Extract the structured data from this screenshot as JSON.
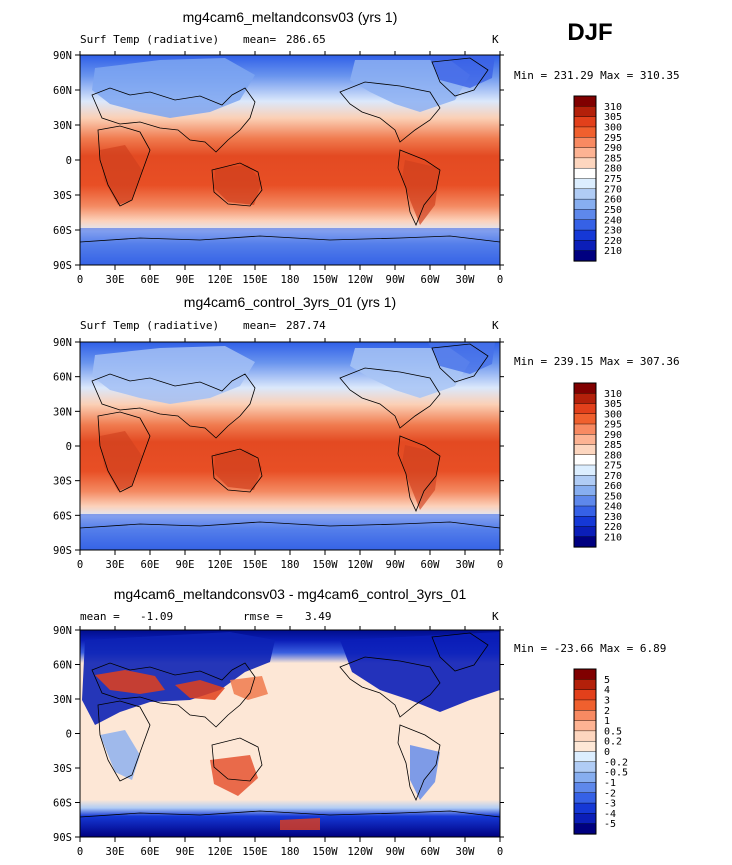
{
  "season": "DJF",
  "chart_data": [
    {
      "type": "heatmap",
      "title": "mg4cam6_meltandconsv03 (yrs 1)",
      "left_label": "Surf Temp (radiative)",
      "stat1_label": "mean=",
      "stat1_value": "286.65",
      "units": "K",
      "minmax_label": "Min = 231.29 Max = 310.35",
      "zlim": [
        231.29,
        310.35
      ],
      "x_ticks": [
        "0",
        "30E",
        "60E",
        "90E",
        "120E",
        "150E",
        "180",
        "150W",
        "120W",
        "90W",
        "60W",
        "30W",
        "0"
      ],
      "y_ticks": [
        "90N",
        "60N",
        "30N",
        "0",
        "30S",
        "60S",
        "90S"
      ],
      "colorbar": {
        "labels": [
          "310",
          "305",
          "300",
          "295",
          "290",
          "285",
          "280",
          "275",
          "270",
          "260",
          "250",
          "240",
          "230",
          "220",
          "210"
        ],
        "colors": [
          "#800000",
          "#b3200a",
          "#e2401b",
          "#f0602e",
          "#f88a62",
          "#fdb393",
          "#fdd6bf",
          "#ffffff",
          "#dceeff",
          "#b0ccf5",
          "#87aef0",
          "#5e88eb",
          "#3661e6",
          "#1538d6",
          "#0b1eb8",
          "#000080"
        ]
      }
    },
    {
      "type": "heatmap",
      "title": "mg4cam6_control_3yrs_01 (yrs 1)",
      "left_label": "Surf Temp (radiative)",
      "stat1_label": "mean=",
      "stat1_value": "287.74",
      "units": "K",
      "minmax_label": "Min = 239.15 Max = 307.36",
      "zlim": [
        239.15,
        307.36
      ],
      "x_ticks": [
        "0",
        "30E",
        "60E",
        "90E",
        "120E",
        "150E",
        "180",
        "150W",
        "120W",
        "90W",
        "60W",
        "30W",
        "0"
      ],
      "y_ticks": [
        "90N",
        "60N",
        "30N",
        "0",
        "30S",
        "60S",
        "90S"
      ],
      "colorbar": {
        "labels": [
          "310",
          "305",
          "300",
          "295",
          "290",
          "285",
          "280",
          "275",
          "270",
          "260",
          "250",
          "240",
          "230",
          "220",
          "210"
        ],
        "colors": [
          "#800000",
          "#b3200a",
          "#e2401b",
          "#f0602e",
          "#f88a62",
          "#fdb393",
          "#fdd6bf",
          "#ffffff",
          "#dceeff",
          "#b0ccf5",
          "#87aef0",
          "#5e88eb",
          "#3661e6",
          "#1538d6",
          "#0b1eb8",
          "#000080"
        ]
      }
    },
    {
      "type": "heatmap",
      "title": "mg4cam6_meltandconsv03 - mg4cam6_control_3yrs_01",
      "stat1_label": "mean =",
      "stat1_value": "-1.09",
      "stat2_label": "rmse =",
      "stat2_value": "3.49",
      "units": "K",
      "minmax_label": "Min = -23.66 Max =    6.89",
      "zlim": [
        -23.66,
        6.89
      ],
      "x_ticks": [
        "0",
        "30E",
        "60E",
        "90E",
        "120E",
        "150E",
        "180",
        "150W",
        "120W",
        "90W",
        "60W",
        "30W",
        "0"
      ],
      "y_ticks": [
        "90N",
        "60N",
        "30N",
        "0",
        "30S",
        "60S",
        "90S"
      ],
      "colorbar": {
        "labels": [
          "5",
          "4",
          "3",
          "2",
          "1",
          "0.5",
          "0.2",
          "0",
          "-0.2",
          "-0.5",
          "-1",
          "-2",
          "-3",
          "-4",
          "-5"
        ],
        "colors": [
          "#800000",
          "#b3200a",
          "#e2401b",
          "#f0602e",
          "#f88a62",
          "#fdb393",
          "#fdd6bf",
          "#fde7d6",
          "#dceeff",
          "#b0ccf5",
          "#87aef0",
          "#5e88eb",
          "#3661e6",
          "#1538d6",
          "#0b1eb8",
          "#000080"
        ]
      }
    }
  ]
}
